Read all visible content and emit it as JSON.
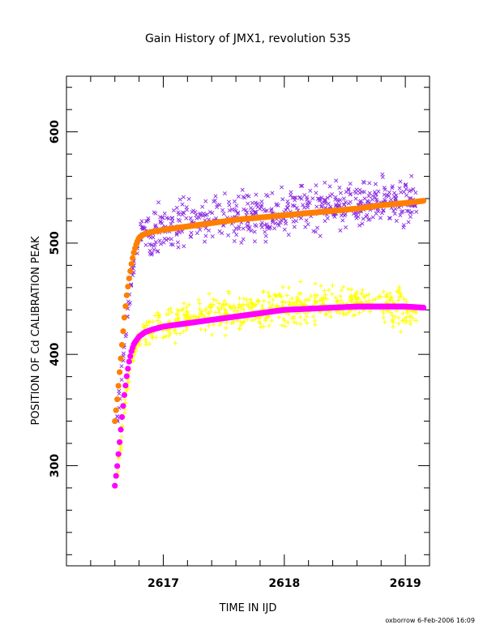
{
  "chart_data": {
    "type": "scatter",
    "title": "Gain History of JMX1, revolution 535",
    "xlabel": "TIME IN IJD",
    "ylabel": "POSITION OF Cd CALIBRATION PEAK",
    "xlim": [
      2616.2,
      2619.2
    ],
    "ylim": [
      210,
      650
    ],
    "x_ticks": [
      2617,
      2618,
      2619
    ],
    "x_tick_labels": [
      "2617",
      "2618",
      "2619"
    ],
    "y_ticks": [
      300,
      400,
      500,
      600
    ],
    "y_tick_labels": [
      "300",
      "400",
      "500",
      "600"
    ],
    "x_minor_step": 0.2,
    "y_minor_step": 20,
    "grid": false,
    "series": [
      {
        "marker": "x",
        "color": "#8a2be2",
        "x": [
          2616.62,
          2616.66,
          2616.7,
          2616.74,
          2616.78,
          2616.82,
          2616.86,
          2616.9,
          2617.0,
          2617.1,
          2617.2,
          2617.3,
          2617.4,
          2617.5,
          2617.6,
          2617.7,
          2617.8,
          2617.9,
          2618.0,
          2618.1,
          2618.2,
          2618.3,
          2618.4,
          2618.5,
          2618.6,
          2618.7,
          2618.8,
          2618.9,
          2619.0,
          2619.1
        ],
        "y": [
          345,
          385,
          430,
          470,
          495,
          515,
          512,
          510,
          512,
          516,
          518,
          519,
          521,
          522,
          523,
          524,
          525,
          526,
          527,
          528,
          530,
          531,
          532,
          533,
          534,
          535,
          536,
          537,
          538,
          538
        ],
        "scatter": 14
      },
      {
        "marker": "line",
        "color": "#ff7f00",
        "x": [
          2616.6,
          2616.62,
          2616.64,
          2616.66,
          2616.68,
          2616.7,
          2616.72,
          2616.74,
          2616.76,
          2616.78,
          2616.8,
          2616.84,
          2616.9,
          2617.0,
          2617.2,
          2617.4,
          2617.6,
          2617.8,
          2618.0,
          2618.2,
          2618.4,
          2618.6,
          2618.8,
          2619.0,
          2619.15
        ],
        "y": [
          340,
          360,
          385,
          410,
          435,
          455,
          470,
          483,
          493,
          500,
          505,
          508,
          510,
          512,
          515,
          518,
          521,
          523,
          525,
          527,
          529,
          531,
          534,
          536,
          538
        ]
      },
      {
        "marker": "+",
        "color": "#ffff00",
        "x": [
          2616.62,
          2616.66,
          2616.7,
          2616.74,
          2616.78,
          2616.82,
          2616.86,
          2616.9,
          2617.0,
          2617.1,
          2617.2,
          2617.3,
          2617.4,
          2617.5,
          2617.6,
          2617.7,
          2617.8,
          2617.9,
          2618.0,
          2618.1,
          2618.2,
          2618.3,
          2618.4,
          2618.5,
          2618.6,
          2618.7,
          2618.8,
          2618.9,
          2619.0,
          2619.1
        ],
        "y": [
          290,
          330,
          370,
          395,
          408,
          418,
          422,
          425,
          428,
          430,
          432,
          433,
          435,
          436,
          437,
          438,
          440,
          441,
          442,
          444,
          445,
          446,
          447,
          448,
          447,
          446,
          445,
          444,
          440,
          436
        ],
        "scatter": 11
      },
      {
        "marker": "line",
        "color": "#ff00ff",
        "x": [
          2616.6,
          2616.62,
          2616.64,
          2616.66,
          2616.68,
          2616.7,
          2616.72,
          2616.74,
          2616.76,
          2616.8,
          2616.85,
          2616.9,
          2617.0,
          2617.2,
          2617.4,
          2617.6,
          2617.8,
          2618.0,
          2618.2,
          2618.4,
          2618.6,
          2618.8,
          2619.0,
          2619.15
        ],
        "y": [
          282,
          300,
          322,
          345,
          365,
          382,
          395,
          404,
          410,
          416,
          420,
          422,
          425,
          428,
          431,
          434,
          437,
          440,
          441,
          442,
          443,
          443,
          443,
          442
        ]
      }
    ]
  },
  "footer": {
    "credit": "oxborrow   6-Feb-2006 16:09"
  }
}
